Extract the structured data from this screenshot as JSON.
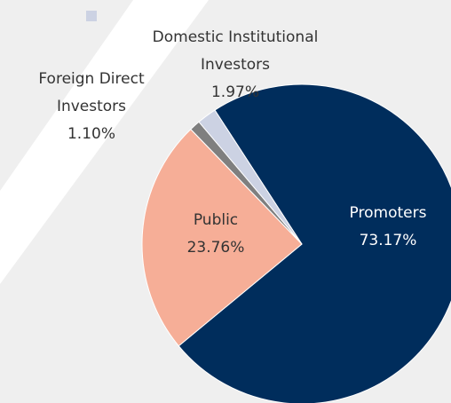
{
  "chart_data": {
    "type": "pie",
    "categories": [
      "Promoters",
      "Public",
      "Foreign Direct Investors",
      "Domestic Institutional Investors"
    ],
    "values": [
      73.17,
      23.76,
      1.1,
      1.97
    ],
    "value_labels": [
      "73.17%",
      "23.76%",
      "1.10%",
      "1.97%"
    ],
    "colors": [
      "#002d5c",
      "#f6ae97",
      "#7f7f7f",
      "#ccd2e3"
    ]
  }
}
